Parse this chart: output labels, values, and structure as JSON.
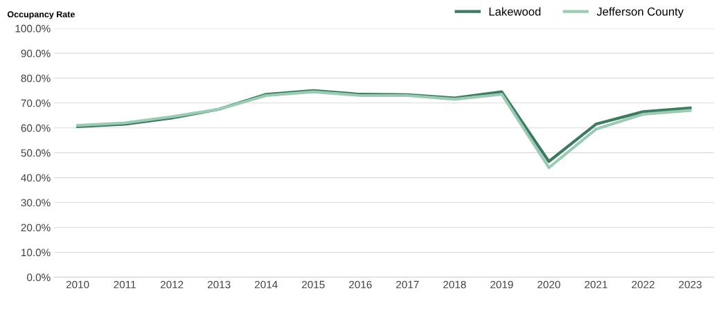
{
  "chart_data": {
    "type": "line",
    "title": "Occupancy Rate",
    "categories": [
      "2010",
      "2011",
      "2012",
      "2013",
      "2014",
      "2015",
      "2016",
      "2017",
      "2018",
      "2019",
      "2020",
      "2021",
      "2022",
      "2023"
    ],
    "series": [
      {
        "name": "Lakewood",
        "color": "#3d7a5f",
        "values": [
          60.5,
          61.5,
          64,
          67.5,
          73.5,
          75,
          73.5,
          73.3,
          72,
          74.5,
          46.5,
          61.5,
          66.5,
          68
        ]
      },
      {
        "name": "Jefferson County",
        "color": "#9ccbb5",
        "values": [
          61,
          62,
          64.5,
          67.5,
          73,
          74.5,
          73,
          73,
          71.5,
          73.5,
          44,
          59.5,
          65.5,
          67
        ]
      }
    ],
    "ylim": [
      0,
      100
    ],
    "yticks": [
      {
        "value": 0,
        "label": "0.0%"
      },
      {
        "value": 10,
        "label": "10.0%"
      },
      {
        "value": 20,
        "label": "20.0%"
      },
      {
        "value": 30,
        "label": "30.0%"
      },
      {
        "value": 40,
        "label": "40.0%"
      },
      {
        "value": 50,
        "label": "50.0%"
      },
      {
        "value": 60,
        "label": "60.0%"
      },
      {
        "value": 70,
        "label": "70.0%"
      },
      {
        "value": 80,
        "label": "80.0%"
      },
      {
        "value": 90,
        "label": "90.0%"
      },
      {
        "value": 100,
        "label": "100.0%"
      }
    ],
    "grid": "y",
    "legend": "top right",
    "marker": "none",
    "line_style": "solid"
  }
}
